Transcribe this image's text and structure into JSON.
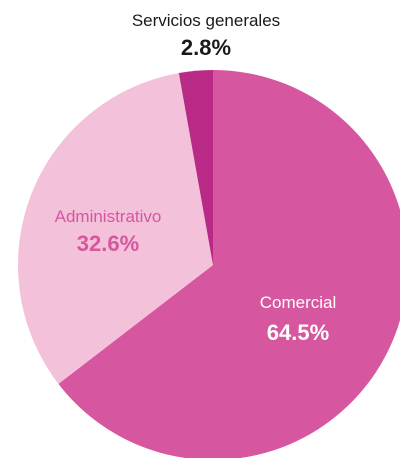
{
  "chart_data": {
    "type": "pie",
    "slices": [
      {
        "label": "Comercial",
        "value": 64.5,
        "value_label": "64.5%",
        "color": "#d6569f",
        "label_color": "#ffffff"
      },
      {
        "label": "Administrativo",
        "value": 32.6,
        "value_label": "32.6%",
        "color": "#f4c1da",
        "label_color": "#d6569f"
      },
      {
        "label": "Servicios generales",
        "value": 2.8,
        "value_label": "2.8%",
        "color": "#b92a86",
        "label_color": "#1a1a1a"
      }
    ],
    "start_angle_deg": 0,
    "direction": "clockwise",
    "legend": "none"
  }
}
